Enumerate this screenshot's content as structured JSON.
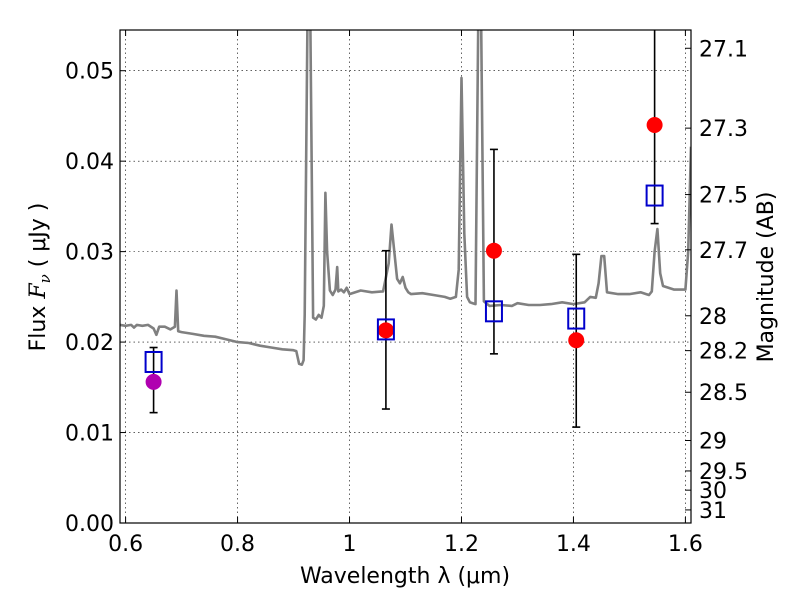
{
  "chart_data": {
    "type": "scatter",
    "xlabel": "Wavelength  λ (μm)",
    "ylabel": "Flux  F_ν  ( μJy )",
    "ylabel_right": "Magnitude (AB)",
    "xlim": [
      0.59,
      1.61
    ],
    "ylim": [
      0.0,
      0.0545
    ],
    "grid": true,
    "x_ticks": [
      {
        "value": 0.6,
        "label": "0.6"
      },
      {
        "value": 0.8,
        "label": "0.8"
      },
      {
        "value": 1.0,
        "label": "1"
      },
      {
        "value": 1.2,
        "label": "1.2"
      },
      {
        "value": 1.4,
        "label": "1.4"
      },
      {
        "value": 1.6,
        "label": "1.6"
      }
    ],
    "y_ticks": [
      {
        "value": 0.0,
        "label": "0.00"
      },
      {
        "value": 0.01,
        "label": "0.01"
      },
      {
        "value": 0.02,
        "label": "0.02"
      },
      {
        "value": 0.03,
        "label": "0.03"
      },
      {
        "value": 0.04,
        "label": "0.04"
      },
      {
        "value": 0.05,
        "label": "0.05"
      }
    ],
    "mag_ticks": [
      {
        "value": 27.1,
        "label": "27.1"
      },
      {
        "value": 27.3,
        "label": "27.3"
      },
      {
        "value": 27.5,
        "label": "27.5"
      },
      {
        "value": 27.7,
        "label": "27.7"
      },
      {
        "value": 28.0,
        "label": "28"
      },
      {
        "value": 28.2,
        "label": "28.2"
      },
      {
        "value": 28.5,
        "label": "28.5"
      },
      {
        "value": 29.0,
        "label": "29"
      },
      {
        "value": 29.5,
        "label": "29.5"
      },
      {
        "value": 30.0,
        "label": "30"
      },
      {
        "value": 31.0,
        "label": "31"
      }
    ],
    "sed_model": {
      "color": "#808080",
      "x": [
        0.59,
        0.6,
        0.61,
        0.615,
        0.62,
        0.63,
        0.64,
        0.65,
        0.655,
        0.66,
        0.67,
        0.68,
        0.688,
        0.691,
        0.694,
        0.7,
        0.72,
        0.74,
        0.76,
        0.78,
        0.8,
        0.82,
        0.84,
        0.86,
        0.88,
        0.9,
        0.905,
        0.91,
        0.915,
        0.918,
        0.92,
        0.925,
        0.93,
        0.935,
        0.94,
        0.945,
        0.95,
        0.954,
        0.957,
        0.96,
        0.965,
        0.97,
        0.975,
        0.978,
        0.98,
        0.985,
        0.99,
        0.995,
        1.0,
        1.02,
        1.04,
        1.06,
        1.07,
        1.075,
        1.08,
        1.085,
        1.09,
        1.095,
        1.1,
        1.105,
        1.11,
        1.13,
        1.15,
        1.17,
        1.18,
        1.19,
        1.195,
        1.2,
        1.205,
        1.21,
        1.215,
        1.22,
        1.225,
        1.23,
        1.235,
        1.24,
        1.25,
        1.27,
        1.29,
        1.3,
        1.32,
        1.34,
        1.36,
        1.38,
        1.4,
        1.42,
        1.43,
        1.44,
        1.445,
        1.45,
        1.455,
        1.46,
        1.48,
        1.5,
        1.52,
        1.53,
        1.535,
        1.54,
        1.545,
        1.55,
        1.555,
        1.56,
        1.58,
        1.6,
        1.605,
        1.61
      ],
      "y": [
        0.0219,
        0.0218,
        0.0219,
        0.0216,
        0.0219,
        0.0218,
        0.0219,
        0.0215,
        0.0208,
        0.0217,
        0.0217,
        0.0214,
        0.0217,
        0.0257,
        0.0212,
        0.0211,
        0.0209,
        0.0207,
        0.0206,
        0.0203,
        0.02,
        0.0199,
        0.0196,
        0.0194,
        0.0192,
        0.0191,
        0.019,
        0.0176,
        0.0175,
        0.018,
        0.023,
        0.056,
        0.056,
        0.0227,
        0.0225,
        0.023,
        0.0227,
        0.024,
        0.0365,
        0.03,
        0.0257,
        0.0252,
        0.0258,
        0.0283,
        0.0256,
        0.0258,
        0.0255,
        0.026,
        0.0253,
        0.0257,
        0.0255,
        0.0256,
        0.0287,
        0.033,
        0.03,
        0.027,
        0.0265,
        0.0272,
        0.026,
        0.0255,
        0.0253,
        0.0254,
        0.0252,
        0.025,
        0.0248,
        0.025,
        0.028,
        0.0492,
        0.032,
        0.025,
        0.0244,
        0.0243,
        0.0242,
        0.056,
        0.056,
        0.0245,
        0.024,
        0.0241,
        0.024,
        0.0243,
        0.0241,
        0.0241,
        0.0242,
        0.0244,
        0.0242,
        0.0244,
        0.025,
        0.0249,
        0.0265,
        0.0295,
        0.0295,
        0.0255,
        0.0253,
        0.0253,
        0.0255,
        0.0253,
        0.0252,
        0.0256,
        0.03,
        0.0325,
        0.0276,
        0.0262,
        0.0258,
        0.0258,
        0.03,
        0.0416
      ]
    },
    "series": [
      {
        "name": "",
        "marker": "circle",
        "color": "#ff0000",
        "points": [
          {
            "x": 1.065,
            "y": 0.0213
          },
          {
            "x": 1.258,
            "y": 0.0301
          },
          {
            "x": 1.405,
            "y": 0.0202
          },
          {
            "x": 1.545,
            "y": 0.044
          }
        ]
      },
      {
        "name": "",
        "marker": "circle",
        "color": "#b000b0",
        "points": [
          {
            "x": 0.65,
            "y": 0.0156
          }
        ]
      },
      {
        "name": "",
        "marker": "open-square",
        "color": "#0000cc",
        "points": [
          {
            "x": 0.65,
            "y": 0.0178
          },
          {
            "x": 1.065,
            "y": 0.0214
          },
          {
            "x": 1.258,
            "y": 0.0234
          },
          {
            "x": 1.405,
            "y": 0.0226
          },
          {
            "x": 1.545,
            "y": 0.0362
          }
        ]
      }
    ],
    "errorbars": [
      {
        "x": 0.65,
        "low": 0.0122,
        "high": 0.0194
      },
      {
        "x": 1.065,
        "low": 0.0126,
        "high": 0.0301
      },
      {
        "x": 1.258,
        "low": 0.0187,
        "high": 0.0413
      },
      {
        "x": 1.405,
        "low": 0.0106,
        "high": 0.0297
      },
      {
        "x": 1.545,
        "low": 0.0331,
        "high": 0.056
      }
    ]
  }
}
